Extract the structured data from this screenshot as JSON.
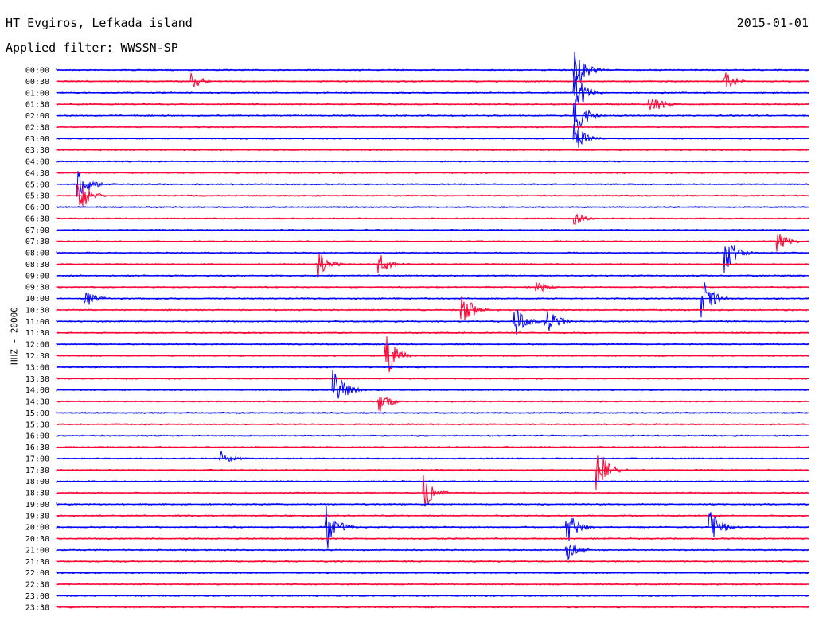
{
  "header": {
    "title": "HT Evgiros, Lefkada island",
    "date": "2015-01-01",
    "filter": "Applied filter: WWSSN-SP",
    "channel": "HHZ - 20000"
  },
  "colors": {
    "blue": "#0000ff",
    "red": "#ff0033"
  },
  "chart_data": {
    "type": "line",
    "title": "HT Evgiros, Lefkada island",
    "ylabel": "HHZ - 20000",
    "row_labels": [
      "00:00",
      "00:30",
      "01:00",
      "01:30",
      "02:00",
      "02:30",
      "03:00",
      "03:30",
      "04:00",
      "04:30",
      "05:00",
      "05:30",
      "06:00",
      "06:30",
      "07:00",
      "07:30",
      "08:00",
      "08:30",
      "09:00",
      "09:30",
      "10:00",
      "10:30",
      "11:00",
      "11:30",
      "12:00",
      "12:30",
      "13:00",
      "13:30",
      "14:00",
      "14:30",
      "15:00",
      "15:30",
      "16:00",
      "16:30",
      "17:00",
      "17:30",
      "18:00",
      "18:30",
      "19:00",
      "19:30",
      "20:00",
      "20:30",
      "21:00",
      "21:30",
      "22:00",
      "22:30",
      "23:00",
      "23:30"
    ],
    "row_colors": [
      "blue",
      "red"
    ],
    "events": [
      {
        "row": 0,
        "x": 0.69,
        "amp": 1.0
      },
      {
        "row": 1,
        "x": 0.18,
        "amp": 0.4
      },
      {
        "row": 1,
        "x": 0.89,
        "amp": 0.4
      },
      {
        "row": 2,
        "x": 0.69,
        "amp": 0.9
      },
      {
        "row": 3,
        "x": 0.79,
        "amp": 0.6
      },
      {
        "row": 4,
        "x": 0.69,
        "amp": 1.0
      },
      {
        "row": 6,
        "x": 0.69,
        "amp": 0.8
      },
      {
        "row": 10,
        "x": 0.03,
        "amp": 0.8
      },
      {
        "row": 11,
        "x": 0.03,
        "amp": 0.8
      },
      {
        "row": 13,
        "x": 0.69,
        "amp": 0.3
      },
      {
        "row": 15,
        "x": 0.96,
        "amp": 0.5
      },
      {
        "row": 16,
        "x": 0.89,
        "amp": 0.9
      },
      {
        "row": 17,
        "x": 0.35,
        "amp": 0.6
      },
      {
        "row": 17,
        "x": 0.43,
        "amp": 0.5
      },
      {
        "row": 19,
        "x": 0.64,
        "amp": 0.3
      },
      {
        "row": 20,
        "x": 0.04,
        "amp": 0.4
      },
      {
        "row": 20,
        "x": 0.86,
        "amp": 0.9
      },
      {
        "row": 21,
        "x": 0.54,
        "amp": 0.8
      },
      {
        "row": 22,
        "x": 0.61,
        "amp": 0.7
      },
      {
        "row": 22,
        "x": 0.65,
        "amp": 0.8
      },
      {
        "row": 25,
        "x": 0.44,
        "amp": 0.9
      },
      {
        "row": 28,
        "x": 0.37,
        "amp": 1.0
      },
      {
        "row": 29,
        "x": 0.43,
        "amp": 0.5
      },
      {
        "row": 34,
        "x": 0.22,
        "amp": 0.4
      },
      {
        "row": 35,
        "x": 0.72,
        "amp": 1.0
      },
      {
        "row": 37,
        "x": 0.49,
        "amp": 0.8
      },
      {
        "row": 40,
        "x": 0.36,
        "amp": 1.0
      },
      {
        "row": 40,
        "x": 0.68,
        "amp": 0.7
      },
      {
        "row": 40,
        "x": 0.87,
        "amp": 0.8
      },
      {
        "row": 42,
        "x": 0.68,
        "amp": 0.5
      }
    ]
  }
}
